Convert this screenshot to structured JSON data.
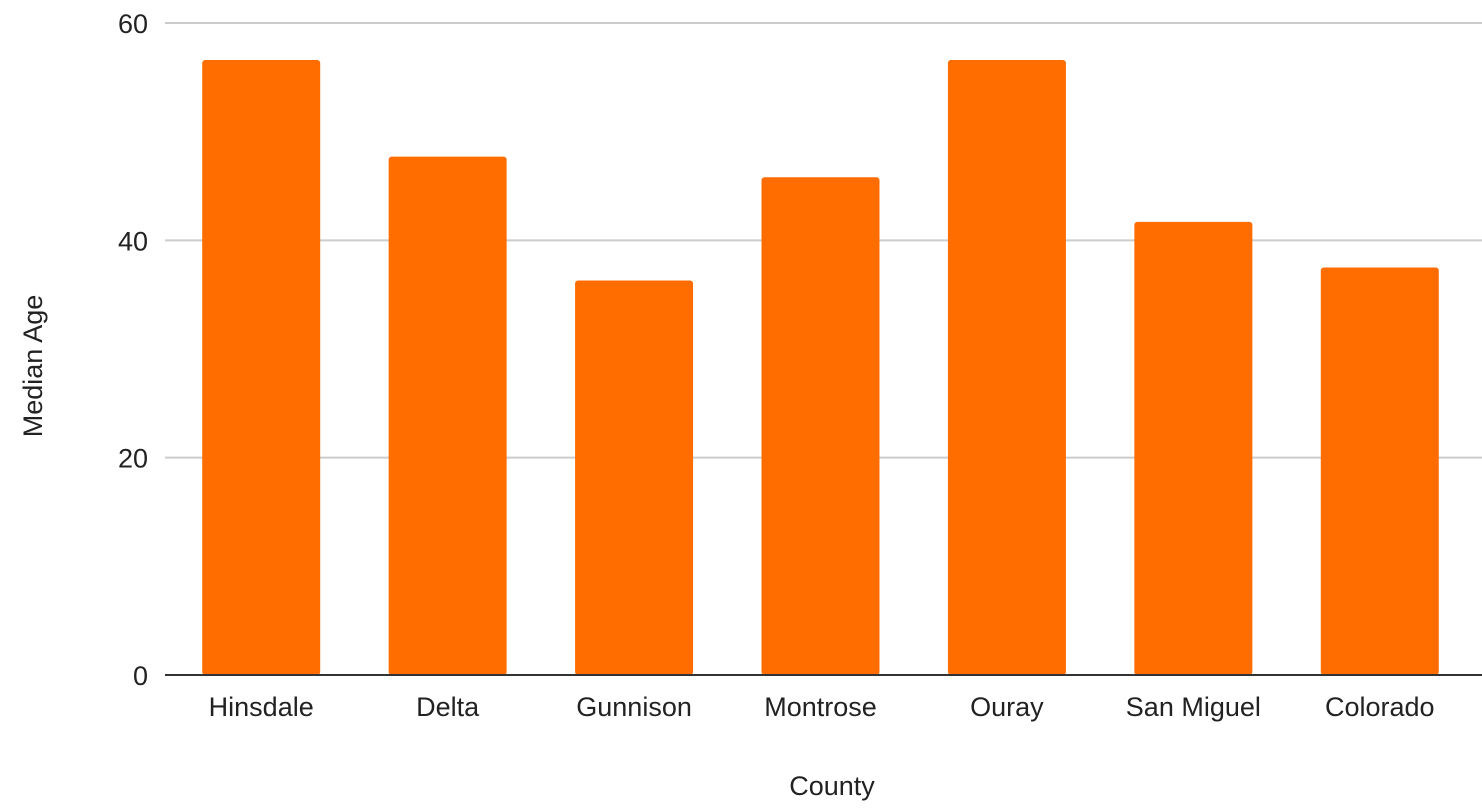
{
  "chart_data": {
    "type": "bar",
    "title": "",
    "xlabel": "County",
    "ylabel": "Median Age",
    "categories": [
      "Hinsdale",
      "Delta",
      "Gunnison",
      "Montrose",
      "Ouray",
      "San Miguel",
      "Colorado"
    ],
    "series": [
      {
        "values": [
          56.6,
          47.7,
          36.3,
          45.8,
          56.6,
          41.7,
          37.5
        ]
      }
    ],
    "ylim": [
      0,
      60
    ],
    "yticks": [
      0,
      20,
      40,
      60
    ],
    "grid": true,
    "legend": "none",
    "colors": {
      "bar": "#ff6d01",
      "grid": "#cccccc",
      "baseline": "#333333",
      "text": "#222222"
    }
  }
}
